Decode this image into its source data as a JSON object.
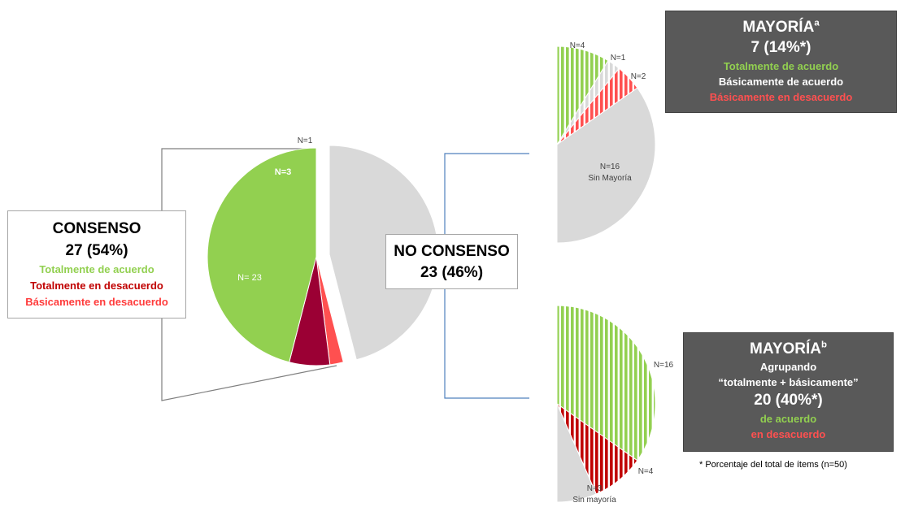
{
  "colors": {
    "green": "#92d050",
    "dark_red": "#9b0034",
    "red": "#ff5050",
    "gray": "#d9d9d9",
    "box_dark": "#595959",
    "connector_blue": "#4f81bd"
  },
  "boxes": {
    "consenso": {
      "title": "CONSENSO",
      "count": "27 (54%)",
      "lines": [
        {
          "text": "Totalmente de acuerdo",
          "color": "#92d050"
        },
        {
          "text": "Totalmente en desacuerdo",
          "color": "#c00000"
        },
        {
          "text": "Básicamente en desacuerdo",
          "color": "#ff3b3b"
        }
      ]
    },
    "no_consenso": {
      "title": "NO CONSENSO",
      "count": "23 (46%)"
    },
    "mayoria_a": {
      "title": "MAYORÍA",
      "sup": "a",
      "count": "7 (14%*)",
      "lines": [
        {
          "text": "Totalmente de acuerdo",
          "color": "#92d050"
        },
        {
          "text": "Básicamente de acuerdo",
          "color": "#ffffff"
        },
        {
          "text": "Básicamente en desacuerdo",
          "color": "#ff5050"
        }
      ]
    },
    "mayoria_b": {
      "title": "MAYORÍA",
      "sup": "b",
      "line1": "Agrupando",
      "line2": "“totalmente + básicamente”",
      "count": "20 (40%*)",
      "lines": [
        {
          "text": "de acuerdo",
          "color": "#92d050"
        },
        {
          "text": "en desacuerdo",
          "color": "#ff5050"
        }
      ]
    }
  },
  "footnote": "* Porcentaje del total de ítems (n=50)",
  "chart_data": [
    {
      "type": "pie",
      "id": "main",
      "slices": [
        {
          "label": "N=1",
          "value": 1,
          "color": "#ff5050"
        },
        {
          "label": "N=3",
          "value": 3,
          "color": "#9b0034"
        },
        {
          "label": "N= 23",
          "value": 23,
          "color": "#92d050"
        },
        {
          "label": "",
          "value": 23,
          "color": "#d9d9d9"
        }
      ]
    },
    {
      "type": "pie",
      "id": "mayoria-a",
      "slices": [
        {
          "label": "N=4",
          "value": 4,
          "color": "#92d050",
          "pattern": "striped"
        },
        {
          "label": "N=1",
          "value": 1,
          "color": "#d9d9d9",
          "pattern": "striped"
        },
        {
          "label": "N=2",
          "value": 2,
          "color": "#ff5050",
          "pattern": "striped"
        },
        {
          "label": "N=16",
          "sublabel": "Sin Mayoría",
          "value": 16,
          "color": "#d9d9d9"
        }
      ]
    },
    {
      "type": "pie",
      "id": "mayoria-b",
      "slices": [
        {
          "label": "N=16",
          "value": 16,
          "color": "#92d050",
          "pattern": "striped"
        },
        {
          "label": "N=4",
          "value": 4,
          "color": "#c00000",
          "pattern": "striped"
        },
        {
          "label": "N=3",
          "sublabel": "Sin mayoría",
          "value": 3,
          "color": "#d9d9d9"
        }
      ]
    }
  ]
}
